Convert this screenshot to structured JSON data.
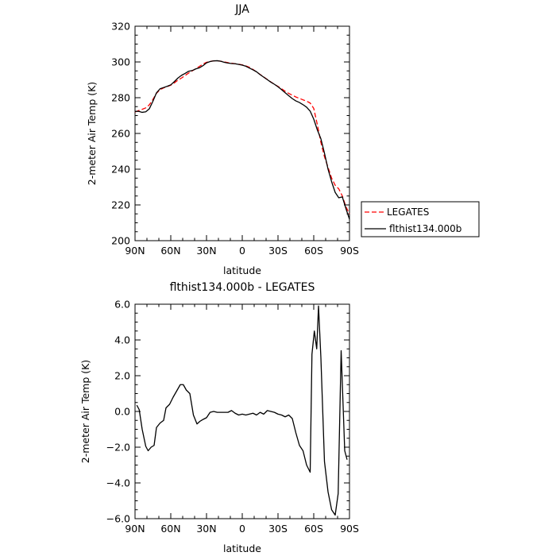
{
  "chart_data": [
    {
      "type": "line",
      "title": "JJA",
      "xlabel": "latitude",
      "ylabel": "2-meter Air Temp (K)",
      "xlim": [
        90,
        -90
      ],
      "ylim": [
        200,
        320
      ],
      "x_ticks": [
        90,
        60,
        30,
        0,
        -30,
        -60,
        -90
      ],
      "x_tick_labels": [
        "90N",
        "60N",
        "30N",
        "0",
        "30S",
        "60S",
        "90S"
      ],
      "y_ticks": [
        200,
        220,
        240,
        260,
        280,
        300,
        320
      ],
      "y_tick_labels": [
        "200",
        "220",
        "240",
        "260",
        "280",
        "300",
        "320"
      ],
      "grid": false,
      "legend_position": "outside-right",
      "series": [
        {
          "name": "LEGATES",
          "color": "#ff0000",
          "dash": "dashed",
          "x": [
            90,
            87,
            84,
            81,
            78,
            75,
            72,
            69,
            66,
            63,
            60,
            57,
            54,
            51,
            48,
            45,
            42,
            39,
            36,
            33,
            30,
            27,
            24,
            21,
            18,
            15,
            12,
            9,
            6,
            3,
            0,
            -3,
            -6,
            -9,
            -12,
            -15,
            -18,
            -21,
            -24,
            -27,
            -30,
            -33,
            -36,
            -39,
            -42,
            -45,
            -48,
            -51,
            -54,
            -57,
            -60,
            -63,
            -66,
            -69,
            -72,
            -75,
            -78,
            -81,
            -84,
            -87,
            -90
          ],
          "values": [
            272.0,
            272.8,
            273.5,
            274.3,
            276.0,
            279.0,
            282.5,
            284.5,
            285.5,
            286.2,
            287.0,
            288.3,
            289.8,
            291.0,
            292.4,
            293.8,
            295.0,
            296.2,
            297.5,
            298.8,
            299.8,
            300.3,
            300.6,
            300.7,
            300.4,
            300.0,
            299.6,
            299.3,
            299.0,
            298.7,
            298.4,
            297.8,
            297.0,
            295.8,
            294.4,
            293.0,
            291.6,
            290.2,
            288.8,
            287.5,
            286.3,
            285.0,
            283.6,
            282.4,
            281.4,
            280.4,
            279.6,
            278.8,
            278.1,
            277.0,
            274.0,
            265.0,
            255.0,
            247.0,
            241.0,
            235.0,
            231.0,
            229.0,
            225.0,
            219.0,
            215.0
          ]
        },
        {
          "name": "flthist134.000b",
          "color": "#000000",
          "dash": "solid",
          "x": [
            90,
            87,
            84,
            81,
            78,
            75,
            72,
            69,
            66,
            63,
            60,
            57,
            54,
            51,
            48,
            45,
            42,
            39,
            36,
            33,
            30,
            27,
            24,
            21,
            18,
            15,
            12,
            9,
            6,
            3,
            0,
            -3,
            -6,
            -9,
            -12,
            -15,
            -18,
            -21,
            -24,
            -27,
            -30,
            -33,
            -36,
            -39,
            -42,
            -45,
            -48,
            -51,
            -54,
            -57,
            -60,
            -63,
            -66,
            -69,
            -72,
            -75,
            -78,
            -81,
            -84,
            -87,
            -90
          ],
          "values": [
            272.3,
            272.4,
            271.8,
            272.1,
            273.8,
            278.0,
            282.7,
            285.0,
            285.7,
            286.4,
            287.2,
            289.0,
            291.0,
            292.5,
            293.6,
            294.8,
            295.2,
            296.1,
            296.7,
            297.9,
            299.5,
            300.2,
            300.6,
            300.7,
            300.4,
            299.8,
            299.4,
            299.1,
            299.0,
            298.6,
            298.2,
            297.6,
            296.6,
            295.6,
            294.5,
            292.9,
            291.5,
            290.1,
            288.7,
            287.5,
            286.1,
            284.5,
            282.8,
            281.1,
            279.5,
            278.2,
            277.3,
            276.1,
            274.7,
            272.5,
            268.0,
            262.0,
            257.0,
            249.0,
            240.0,
            233.0,
            227.0,
            224.0,
            224.5,
            218.0,
            212.0
          ]
        }
      ]
    },
    {
      "type": "line",
      "title": "flthist134.000b - LEGATES",
      "xlabel": "latitude",
      "ylabel": "2-meter Air Temp (K)",
      "xlim": [
        90,
        -90
      ],
      "ylim": [
        -6,
        6
      ],
      "x_ticks": [
        90,
        60,
        30,
        0,
        -30,
        -60,
        -90
      ],
      "x_tick_labels": [
        "90N",
        "60N",
        "30N",
        "0",
        "30S",
        "60S",
        "90S"
      ],
      "y_ticks": [
        -6,
        -4,
        -2,
        0,
        2,
        4,
        6
      ],
      "y_tick_labels": [
        "−6.0",
        "−4.0",
        "−2.0",
        "0.0",
        "2.0",
        "4.0",
        "6.0"
      ],
      "grid": false,
      "series": [
        {
          "color": "#000000",
          "dash": "solid",
          "x": [
            88.5,
            86.5,
            84,
            81,
            79,
            76.5,
            74,
            72,
            69,
            66,
            64,
            61,
            58,
            55,
            52,
            49.5,
            47,
            44,
            41,
            38,
            35.5,
            33,
            30,
            27,
            24,
            21,
            18,
            15,
            12,
            9,
            6,
            3,
            0,
            -3,
            -6,
            -9,
            -12,
            -15,
            -18,
            -21,
            -24,
            -27,
            -30,
            -33,
            -36,
            -39,
            -42,
            -45,
            -48,
            -51,
            -54,
            -57,
            -58.5,
            -60.5,
            -62.5,
            -64,
            -66,
            -69,
            -72,
            -75,
            -78,
            -80.5,
            -83,
            -86,
            -88
          ],
          "values": [
            0.35,
            0.1,
            -1.0,
            -1.95,
            -2.2,
            -2.0,
            -1.9,
            -0.9,
            -0.65,
            -0.5,
            0.2,
            0.4,
            0.8,
            1.15,
            1.5,
            1.5,
            1.2,
            1.0,
            -0.2,
            -0.7,
            -0.55,
            -0.45,
            -0.35,
            -0.05,
            0.0,
            -0.05,
            -0.05,
            -0.05,
            -0.05,
            0.05,
            -0.1,
            -0.2,
            -0.15,
            -0.2,
            -0.15,
            -0.1,
            -0.2,
            -0.05,
            -0.15,
            0.05,
            0.0,
            -0.05,
            -0.15,
            -0.2,
            -0.3,
            -0.2,
            -0.4,
            -1.2,
            -1.9,
            -2.2,
            -3.0,
            -3.4,
            3.2,
            4.5,
            3.5,
            5.9,
            3.0,
            -2.8,
            -4.5,
            -5.5,
            -5.8,
            -4.6,
            3.4,
            -2.2,
            -2.7
          ]
        }
      ]
    }
  ]
}
